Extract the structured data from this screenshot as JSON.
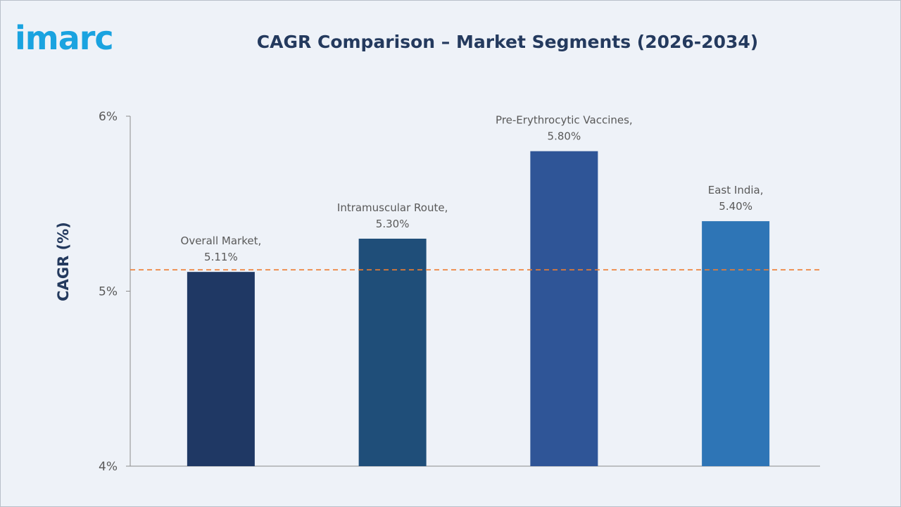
{
  "brand": {
    "logo_text": "imarc",
    "logo_color": "#1aa3e0"
  },
  "chart_data": {
    "type": "bar",
    "title": "CAGR Comparison – Market Segments (2026-2034)",
    "xlabel": "",
    "ylabel": "CAGR (%)",
    "ylim": [
      4,
      6
    ],
    "yticks": [
      {
        "value": 6,
        "label": "6%"
      },
      {
        "value": 5,
        "label": "5%"
      },
      {
        "value": 4,
        "label": "4%"
      }
    ],
    "grid": false,
    "categories": [
      "Overall Market",
      "Intramuscular Route",
      "Pre-Erythrocytic Vaccines",
      "East India"
    ],
    "values": [
      5.11,
      5.3,
      5.8,
      5.4
    ],
    "data_labels": [
      [
        "Overall Market,",
        "5.11%"
      ],
      [
        "Intramuscular Route,",
        "5.30%"
      ],
      [
        "Pre-Erythrocytic Vaccines,",
        "5.80%"
      ],
      [
        "East India,",
        "5.40%"
      ]
    ],
    "bar_colors": [
      "#1f3864",
      "#1f4e79",
      "#2f5597",
      "#2e75b6"
    ],
    "reference_line": {
      "value": 5.11,
      "style": "dashed",
      "color": "#ed7d31"
    }
  }
}
